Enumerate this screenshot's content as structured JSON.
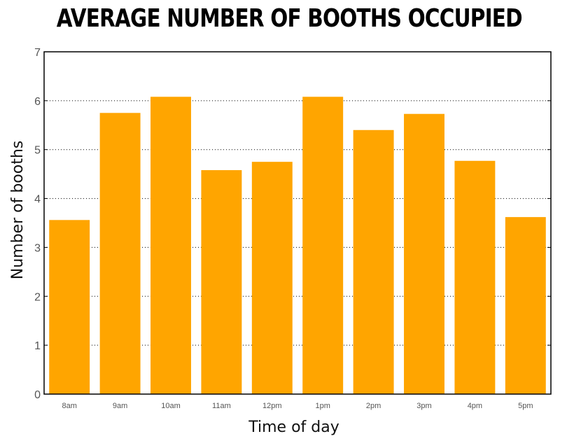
{
  "chart_data": {
    "type": "bar",
    "title": "AVERAGE NUMBER OF BOOTHS OCCUPIED",
    "xlabel": "Time of day",
    "ylabel": "Number of booths",
    "categories": [
      "8am",
      "9am",
      "10am",
      "11am",
      "12pm",
      "1pm",
      "2pm",
      "3pm",
      "4pm",
      "5pm"
    ],
    "values": [
      3.56,
      5.75,
      6.08,
      4.58,
      4.75,
      6.08,
      5.4,
      5.73,
      4.77,
      3.62
    ],
    "ylim": [
      0,
      7
    ],
    "yticks": [
      "0",
      "1",
      "2",
      "3",
      "4",
      "5",
      "6",
      "7"
    ],
    "grid": true,
    "bar_color": "#FFA500"
  }
}
